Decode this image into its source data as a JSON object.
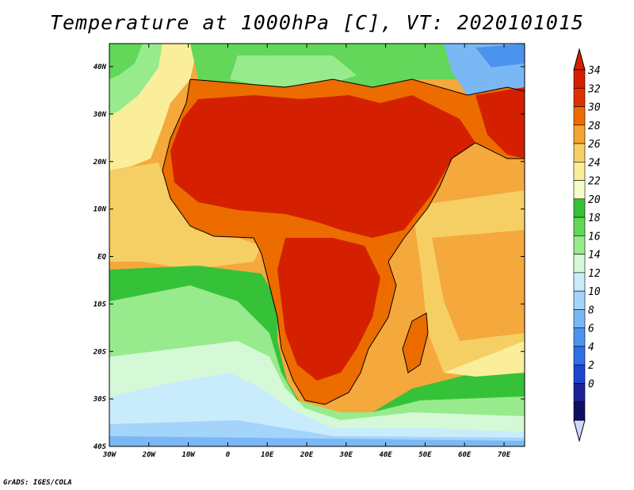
{
  "title": "Temperature at 1000hPa [C], VT: 2020101015",
  "credit": "GrADS: IGES/COLA",
  "map": {
    "lon_ticks": [
      "30W",
      "20W",
      "10W",
      "0",
      "10E",
      "20E",
      "30E",
      "40E",
      "50E",
      "60E",
      "70E"
    ],
    "lat_ticks": [
      "40N",
      "30N",
      "20N",
      "10N",
      "EQ",
      "10S",
      "20S",
      "30S",
      "40S"
    ]
  },
  "colorbar": {
    "labels": [
      "34",
      "32",
      "30",
      "28",
      "26",
      "24",
      "22",
      "20",
      "18",
      "16",
      "14",
      "12",
      "10",
      "8",
      "6",
      "4",
      "2",
      "0"
    ],
    "colors": [
      "#d42000",
      "#e03000",
      "#ec6c00",
      "#f3a531",
      "#f6cf64",
      "#fbee9b",
      "#f7fcc8",
      "#36c238",
      "#62d75a",
      "#98eb8c",
      "#d5f9d6",
      "#c8ecfc",
      "#a4d4fa",
      "#7ab8f5",
      "#4c93f0",
      "#2f6ee6",
      "#1e46d2",
      "#1c2196",
      "#0d1060"
    ],
    "top_color": "#d42000",
    "bottom_color": "#d0d8ff"
  }
}
